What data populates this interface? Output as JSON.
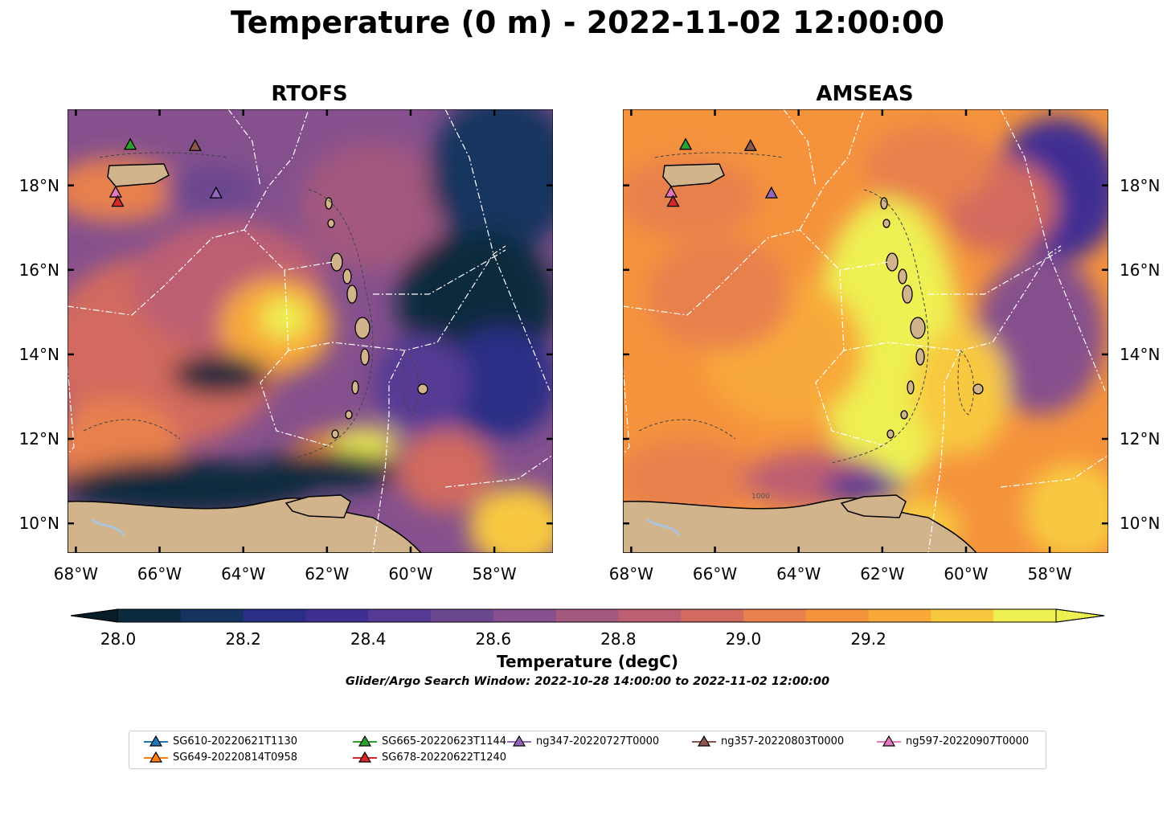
{
  "title": "Temperature (0 m) - 2022-11-02 12:00:00",
  "panels": [
    {
      "title": "RTOFS"
    },
    {
      "title": "AMSEAS"
    }
  ],
  "lon_ticks": [
    "68°W",
    "66°W",
    "64°W",
    "62°W",
    "60°W",
    "58°W"
  ],
  "lat_ticks": [
    "18°N",
    "16°N",
    "14°N",
    "12°N",
    "10°N"
  ],
  "colorbar": {
    "label": "Temperature (degC)",
    "ticks": [
      "28.0",
      "28.2",
      "28.4",
      "28.6",
      "28.8",
      "29.0",
      "29.2"
    ],
    "colors": [
      "#0b2a3e",
      "#14345f",
      "#2a2f85",
      "#3f2f93",
      "#553a94",
      "#6a478f",
      "#85508d",
      "#a3587e",
      "#bd5f72",
      "#d26a5f",
      "#e8804e",
      "#f5933d",
      "#f8a93a",
      "#f8c93f",
      "#eef052"
    ],
    "extend": "both"
  },
  "search_window": "Glider/Argo Search Window: 2022-10-28 14:00:00 to 2022-11-02 12:00:00",
  "contour_label": "1000",
  "legend": [
    {
      "label": "SG610-20220621T1130",
      "color": "#1f77b4"
    },
    {
      "label": "SG649-20220814T0958",
      "color": "#ff7f0e"
    },
    {
      "label": "SG665-20220623T1144",
      "color": "#2ca02c"
    },
    {
      "label": "SG678-20220622T1240",
      "color": "#d62728"
    },
    {
      "label": "ng347-20220727T0000",
      "color": "#9467bd"
    },
    {
      "label": "ng357-20220803T0000",
      "color": "#8c564b"
    },
    {
      "label": "ng597-20220907T0000",
      "color": "#e377c2"
    }
  ],
  "markers": [
    {
      "series": "SG665-20220623T1144",
      "lon": -66.7,
      "lat": 18.95,
      "color": "#2ca02c"
    },
    {
      "series": "ng357-20220803T0000",
      "lon": -65.15,
      "lat": 18.92,
      "color": "#8c564b"
    },
    {
      "series": "ng347-20220727T0000",
      "lon": -64.65,
      "lat": 17.8,
      "color": "#9467bd"
    },
    {
      "series": "ng597-20220907T0000",
      "lon": -67.05,
      "lat": 17.82,
      "color": "#e377c2"
    },
    {
      "series": "SG678-20220622T1240",
      "lon": -67.0,
      "lat": 17.6,
      "color": "#d62728"
    }
  ],
  "map_extent": {
    "lon_min": -68.2,
    "lon_max": -56.6,
    "lat_min": 9.3,
    "lat_max": 19.8
  },
  "colors": {
    "land": "#d2b48c",
    "river": "#aac5dd"
  }
}
